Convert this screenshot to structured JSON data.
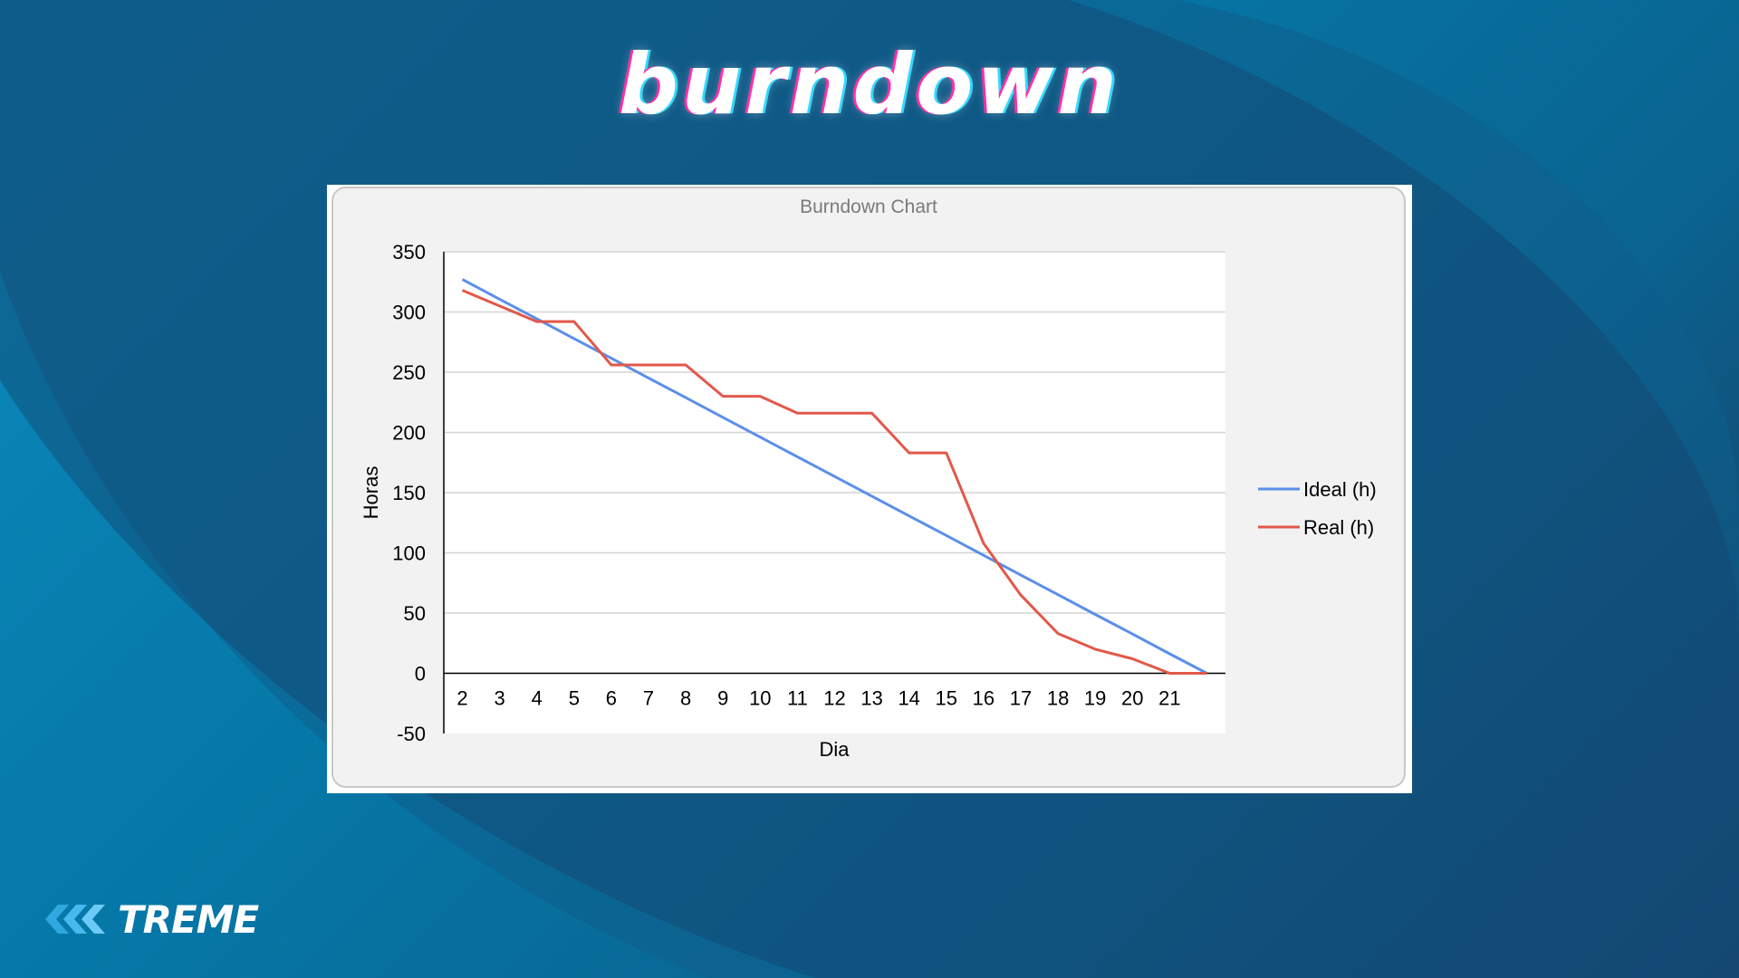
{
  "slide": {
    "title": "burndown",
    "logo_text": "TREME"
  },
  "colors": {
    "ideal": "#5b8fe8",
    "real": "#e2584a",
    "grid": "#d4d4d4",
    "axis": "#000000",
    "title": "#7a7a7a"
  },
  "chart_data": {
    "type": "line",
    "title": "Burndown Chart",
    "xlabel": "Dia",
    "ylabel": "Horas",
    "ylim": [
      -50,
      350
    ],
    "yticks": [
      -50,
      0,
      50,
      100,
      150,
      200,
      250,
      300,
      350
    ],
    "categories": [
      "2",
      "3",
      "4",
      "5",
      "6",
      "7",
      "8",
      "9",
      "10",
      "11",
      "12",
      "13",
      "14",
      "15",
      "16",
      "17",
      "18",
      "19",
      "20",
      "21",
      ""
    ],
    "grid": true,
    "legend": "right",
    "series": [
      {
        "name": "Ideal (h)",
        "values": [
          327,
          310.6,
          294.3,
          277.9,
          261.6,
          245.2,
          228.9,
          212.5,
          196.1,
          179.8,
          163.4,
          147.1,
          130.7,
          114.4,
          98,
          81.6,
          65.3,
          48.9,
          32.6,
          16.2,
          0
        ]
      },
      {
        "name": "Real (h)",
        "values": [
          318,
          305,
          292,
          292,
          256,
          256,
          256,
          230,
          230,
          216,
          216,
          216,
          183,
          183,
          108,
          65,
          33,
          20,
          12,
          0,
          0
        ]
      }
    ]
  }
}
